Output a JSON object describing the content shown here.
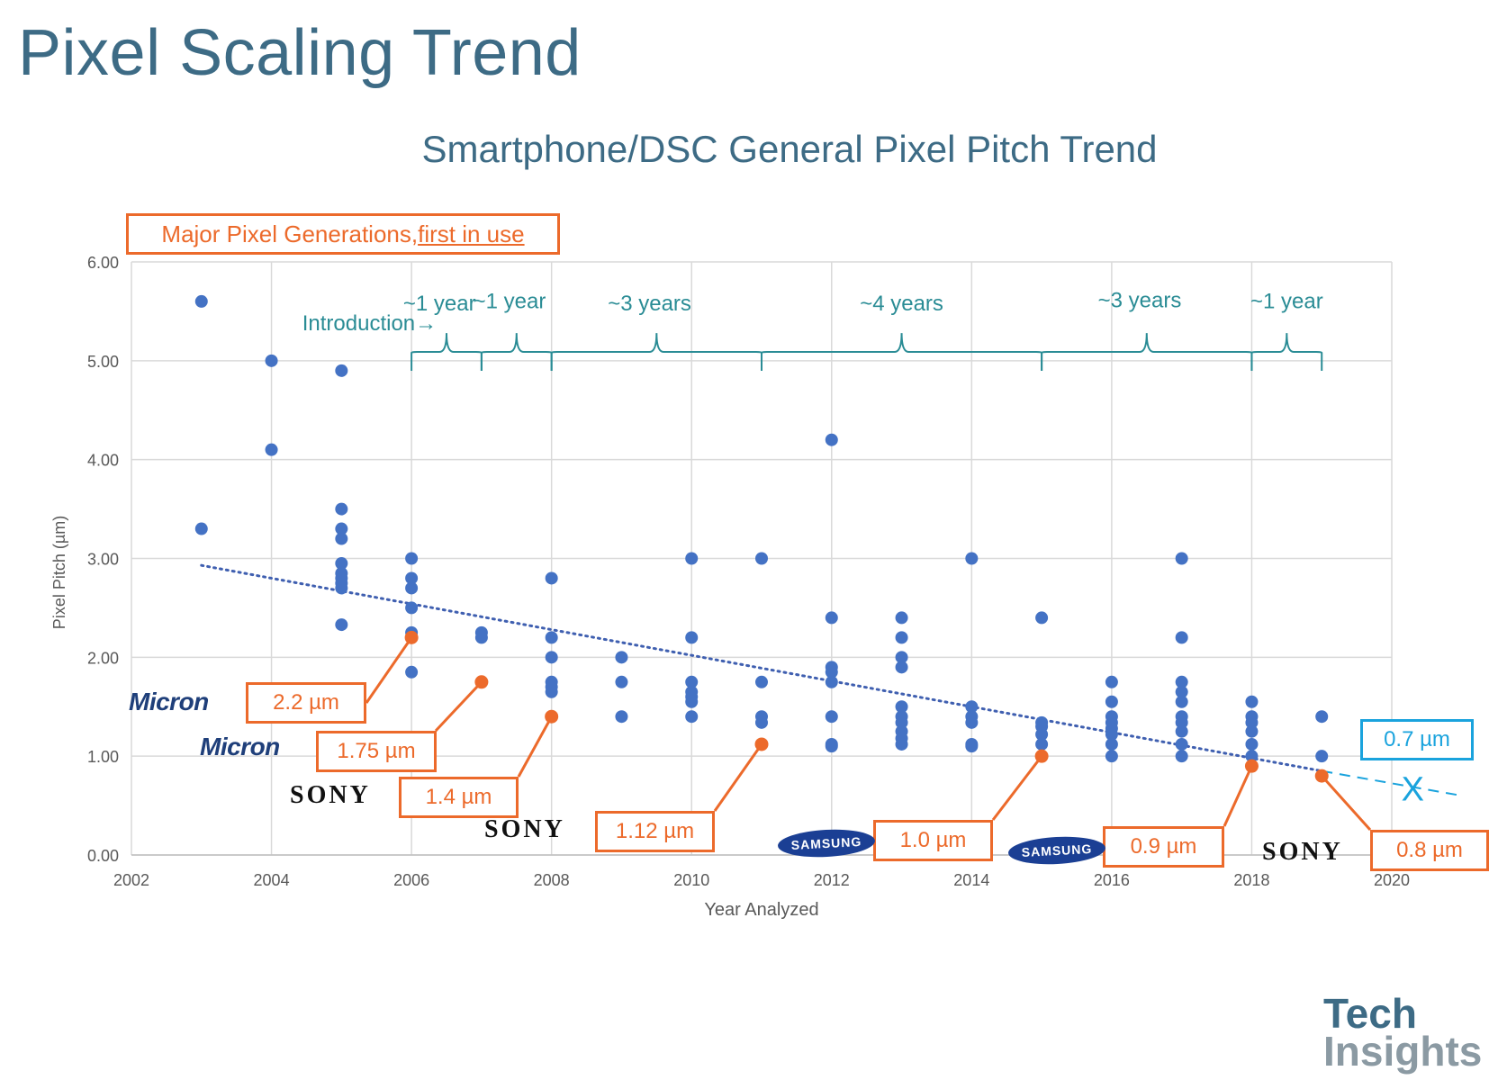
{
  "slide": {
    "title": "Pixel Scaling Trend"
  },
  "callout": {
    "text": "Major Pixel Generations, ",
    "underlined": "first in use"
  },
  "future_box": "0.7 µm",
  "future_marker": "X",
  "generation_boxes": [
    {
      "label": "2.2 µm",
      "year": 2006,
      "pitch": 2.2
    },
    {
      "label": "1.75 µm",
      "year": 2007,
      "pitch": 1.75
    },
    {
      "label": "1.4 µm",
      "year": 2008,
      "pitch": 1.4
    },
    {
      "label": "1.12 µm",
      "year": 2011,
      "pitch": 1.12
    },
    {
      "label": "1.0 µm",
      "year": 2015,
      "pitch": 1.0
    },
    {
      "label": "0.9 µm",
      "year": 2018,
      "pitch": 0.9
    },
    {
      "label": "0.8 µm",
      "year": 2019,
      "pitch": 0.8
    }
  ],
  "logos": [
    {
      "name": "micron-logo",
      "text": "Micron",
      "kind": "micron"
    },
    {
      "name": "micron-logo",
      "text": "Micron",
      "kind": "micron"
    },
    {
      "name": "sony-logo",
      "text": "SONY",
      "kind": "sony"
    },
    {
      "name": "sony-logo",
      "text": "SONY",
      "kind": "sony"
    },
    {
      "name": "samsung-logo",
      "text": "SAMSUNG",
      "kind": "samsung"
    },
    {
      "name": "samsung-logo",
      "text": "SAMSUNG",
      "kind": "samsung"
    },
    {
      "name": "sony-logo",
      "text": "SONY",
      "kind": "sony"
    }
  ],
  "brand": {
    "line1": "Tech",
    "line2": "Insights"
  },
  "chart_data": {
    "type": "scatter",
    "title": "Smartphone/DSC General Pixel Pitch Trend",
    "xlabel": "Year Analyzed",
    "ylabel": "Pixel Pitch (µm)",
    "xlim": [
      2002,
      2020
    ],
    "ylim": [
      0,
      6
    ],
    "x_ticks": [
      2002,
      2004,
      2006,
      2008,
      2010,
      2012,
      2014,
      2016,
      2018,
      2020
    ],
    "x_tick_labels": [
      "2002",
      "2004",
      "2006",
      "2008",
      "2010",
      "2012",
      "2014",
      "2016",
      "2018",
      "2020"
    ],
    "y_ticks": [
      0,
      1,
      2,
      3,
      4,
      5,
      6
    ],
    "y_tick_labels": [
      "0.00",
      "1.00",
      "2.00",
      "3.00",
      "4.00",
      "5.00",
      "6.00"
    ],
    "grid": true,
    "colors": {
      "points": "#4472c4",
      "trend": "#3f5fb0",
      "generation": "#ec6a2b",
      "annotation": "#2a8c95",
      "future": "#1aa3dd",
      "grid": "#d9d9d9"
    },
    "points": [
      [
        2003,
        5.6
      ],
      [
        2003,
        3.3
      ],
      [
        2004,
        5.0
      ],
      [
        2004,
        4.1
      ],
      [
        2005,
        4.9
      ],
      [
        2005,
        3.5
      ],
      [
        2005,
        3.3
      ],
      [
        2005,
        3.2
      ],
      [
        2005,
        2.95
      ],
      [
        2005,
        2.85
      ],
      [
        2005,
        2.8
      ],
      [
        2005,
        2.75
      ],
      [
        2005,
        2.7
      ],
      [
        2005,
        2.33
      ],
      [
        2006,
        3.0
      ],
      [
        2006,
        2.8
      ],
      [
        2006,
        2.7
      ],
      [
        2006,
        2.5
      ],
      [
        2006,
        2.25
      ],
      [
        2006,
        2.2
      ],
      [
        2006,
        1.85
      ],
      [
        2007,
        2.25
      ],
      [
        2007,
        2.2
      ],
      [
        2007,
        1.75
      ],
      [
        2008,
        2.8
      ],
      [
        2008,
        2.2
      ],
      [
        2008,
        2.0
      ],
      [
        2008,
        1.75
      ],
      [
        2008,
        1.7
      ],
      [
        2008,
        1.65
      ],
      [
        2008,
        1.4
      ],
      [
        2009,
        2.0
      ],
      [
        2009,
        1.75
      ],
      [
        2009,
        1.4
      ],
      [
        2010,
        3.0
      ],
      [
        2010,
        2.2
      ],
      [
        2010,
        1.75
      ],
      [
        2010,
        1.65
      ],
      [
        2010,
        1.6
      ],
      [
        2010,
        1.55
      ],
      [
        2010,
        1.4
      ],
      [
        2011,
        3.0
      ],
      [
        2011,
        1.75
      ],
      [
        2011,
        1.4
      ],
      [
        2011,
        1.34
      ],
      [
        2011,
        1.12
      ],
      [
        2012,
        4.2
      ],
      [
        2012,
        2.4
      ],
      [
        2012,
        1.9
      ],
      [
        2012,
        1.85
      ],
      [
        2012,
        1.75
      ],
      [
        2012,
        1.4
      ],
      [
        2012,
        1.12
      ],
      [
        2012,
        1.1
      ],
      [
        2013,
        2.4
      ],
      [
        2013,
        2.2
      ],
      [
        2013,
        2.0
      ],
      [
        2013,
        1.9
      ],
      [
        2013,
        1.5
      ],
      [
        2013,
        1.4
      ],
      [
        2013,
        1.34
      ],
      [
        2013,
        1.25
      ],
      [
        2013,
        1.18
      ],
      [
        2013,
        1.12
      ],
      [
        2014,
        3.0
      ],
      [
        2014,
        1.5
      ],
      [
        2014,
        1.4
      ],
      [
        2014,
        1.34
      ],
      [
        2014,
        1.12
      ],
      [
        2014,
        1.1
      ],
      [
        2015,
        2.4
      ],
      [
        2015,
        1.34
      ],
      [
        2015,
        1.3
      ],
      [
        2015,
        1.22
      ],
      [
        2015,
        1.12
      ],
      [
        2015,
        1.0
      ],
      [
        2016,
        1.75
      ],
      [
        2016,
        1.55
      ],
      [
        2016,
        1.4
      ],
      [
        2016,
        1.34
      ],
      [
        2016,
        1.28
      ],
      [
        2016,
        1.22
      ],
      [
        2016,
        1.12
      ],
      [
        2016,
        1.0
      ],
      [
        2017,
        3.0
      ],
      [
        2017,
        2.2
      ],
      [
        2017,
        1.75
      ],
      [
        2017,
        1.65
      ],
      [
        2017,
        1.55
      ],
      [
        2017,
        1.4
      ],
      [
        2017,
        1.34
      ],
      [
        2017,
        1.25
      ],
      [
        2017,
        1.12
      ],
      [
        2017,
        1.0
      ],
      [
        2018,
        1.55
      ],
      [
        2018,
        1.4
      ],
      [
        2018,
        1.34
      ],
      [
        2018,
        1.25
      ],
      [
        2018,
        1.12
      ],
      [
        2018,
        1.0
      ],
      [
        2019,
        1.4
      ],
      [
        2019,
        1.0
      ]
    ],
    "trendline": {
      "from": [
        2003,
        2.93
      ],
      "to": [
        2019,
        0.85
      ]
    },
    "extrapolation": {
      "from": [
        2019,
        0.85
      ],
      "to": [
        2021,
        0.6
      ],
      "marker_at": [
        2020.3,
        0.68
      ]
    },
    "annotations": [
      {
        "text": "Introduction→",
        "x": 2005.4,
        "y": 5.4
      },
      {
        "text": "~1 year",
        "x": 2006.4,
        "y": 5.6
      },
      {
        "text": "~1 year",
        "x": 2007.4,
        "y": 5.62
      },
      {
        "text": "~3 years",
        "x": 2009.4,
        "y": 5.6
      },
      {
        "text": "~4 years",
        "x": 2013,
        "y": 5.6
      },
      {
        "text": "~3 years",
        "x": 2016.4,
        "y": 5.63
      },
      {
        "text": "~1 year",
        "x": 2018.5,
        "y": 5.62
      }
    ],
    "brackets": [
      [
        2006,
        2007
      ],
      [
        2007,
        2008
      ],
      [
        2008,
        2011
      ],
      [
        2011,
        2015
      ],
      [
        2015,
        2018
      ],
      [
        2018,
        2019
      ]
    ]
  }
}
